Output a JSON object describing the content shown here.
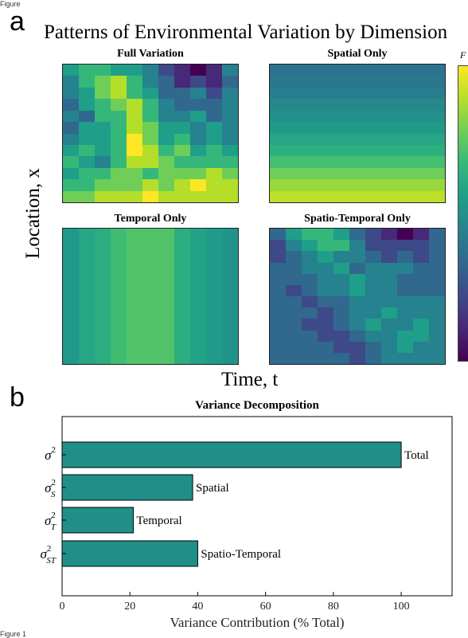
{
  "header_text": "Figure",
  "footer_text": "Figure 1",
  "panel_a": {
    "letter": "a",
    "title": "Patterns of Environmental Variation by Dimension",
    "ylabel": "Location, x",
    "xlabel": "Time, t",
    "colorbar_label": "F"
  },
  "panel_b": {
    "letter": "b"
  },
  "chart_data": [
    {
      "type": "heatmap",
      "title": "Full Variation",
      "rows": 12,
      "cols": 11,
      "values": [
        [
          5,
          6,
          6,
          5,
          5,
          4,
          2,
          1,
          0,
          1,
          4
        ],
        [
          4,
          6,
          7,
          8,
          6,
          4,
          3,
          1,
          2,
          1,
          3
        ],
        [
          4,
          5,
          7,
          8,
          6,
          5,
          3,
          3,
          4,
          2,
          4
        ],
        [
          3,
          5,
          6,
          7,
          8,
          6,
          4,
          3,
          3,
          3,
          4
        ],
        [
          4,
          3,
          6,
          6,
          8,
          6,
          4,
          4,
          5,
          3,
          4
        ],
        [
          3,
          5,
          5,
          6,
          8,
          7,
          5,
          5,
          4,
          5,
          4
        ],
        [
          4,
          5,
          5,
          6,
          9,
          7,
          5,
          6,
          4,
          5,
          4
        ],
        [
          5,
          6,
          5,
          6,
          9,
          8,
          6,
          7,
          5,
          6,
          5
        ],
        [
          6,
          5,
          4,
          6,
          8,
          8,
          7,
          6,
          6,
          6,
          6
        ],
        [
          5,
          6,
          6,
          7,
          7,
          6,
          7,
          7,
          7,
          8,
          7
        ],
        [
          6,
          6,
          7,
          7,
          7,
          8,
          7,
          8,
          9,
          8,
          8
        ],
        [
          7,
          7,
          8,
          8,
          8,
          9,
          8,
          8,
          8,
          8,
          8
        ]
      ],
      "colorscale": "viridis"
    },
    {
      "type": "heatmap",
      "title": "Spatial Only",
      "rows": 12,
      "cols": 11,
      "row_values": [
        3.4,
        3.6,
        3.8,
        4.2,
        4.5,
        4.9,
        5.3,
        5.7,
        6.3,
        7,
        7.6,
        8.1
      ],
      "colorscale": "viridis"
    },
    {
      "type": "heatmap",
      "title": "Temporal Only",
      "rows": 12,
      "cols": 11,
      "col_values": [
        4.8,
        5.3,
        5.6,
        6.2,
        6.5,
        6.5,
        6.5,
        5.6,
        5.2,
        4.9,
        4.6
      ],
      "colorscale": "viridis"
    },
    {
      "type": "heatmap",
      "title": "Spatio-Temporal Only",
      "rows": 12,
      "cols": 11,
      "values": [
        [
          3,
          5,
          6,
          6,
          5,
          3,
          2,
          1,
          0,
          1,
          3
        ],
        [
          2,
          4,
          5,
          6,
          6,
          4,
          2,
          2,
          2,
          2,
          3
        ],
        [
          2,
          3,
          4,
          5,
          4,
          4,
          3,
          2,
          3,
          2,
          3
        ],
        [
          3,
          3,
          4,
          4,
          5,
          3,
          4,
          4,
          4,
          3,
          3
        ],
        [
          3,
          3,
          3,
          4,
          4,
          5,
          4,
          4,
          3,
          3,
          3
        ],
        [
          3,
          2,
          3,
          4,
          4,
          5,
          4,
          4,
          3,
          3,
          3
        ],
        [
          3,
          3,
          2,
          3,
          3,
          4,
          4,
          4,
          4,
          4,
          4
        ],
        [
          3,
          3,
          3,
          2,
          3,
          4,
          4,
          5,
          4,
          4,
          4
        ],
        [
          3,
          3,
          2,
          2,
          3,
          4,
          5,
          4,
          4,
          5,
          4
        ],
        [
          3,
          3,
          3,
          2,
          2,
          3,
          4,
          4,
          5,
          5,
          4
        ],
        [
          3,
          3,
          3,
          3,
          2,
          2,
          3,
          4,
          5,
          4,
          4
        ],
        [
          3,
          3,
          3,
          3,
          3,
          2,
          3,
          4,
          4,
          4,
          4
        ]
      ],
      "colorscale": "viridis"
    },
    {
      "type": "bar",
      "orientation": "horizontal",
      "title": "Variance Decomposition",
      "categories": [
        "σ²",
        "σ²_S",
        "σ²_T",
        "σ²_ST"
      ],
      "values": [
        100,
        38.5,
        21,
        40
      ],
      "data_labels": [
        "Total",
        "Spatial",
        "Temporal",
        "Spatio-Temporal"
      ],
      "xlabel": "Variance Contribution (% Total)",
      "xlim": [
        0,
        115
      ],
      "xticks": [
        0,
        20,
        40,
        60,
        80,
        100
      ],
      "bar_color": "#1f8f88",
      "bar_edge_color": "#000000"
    }
  ]
}
